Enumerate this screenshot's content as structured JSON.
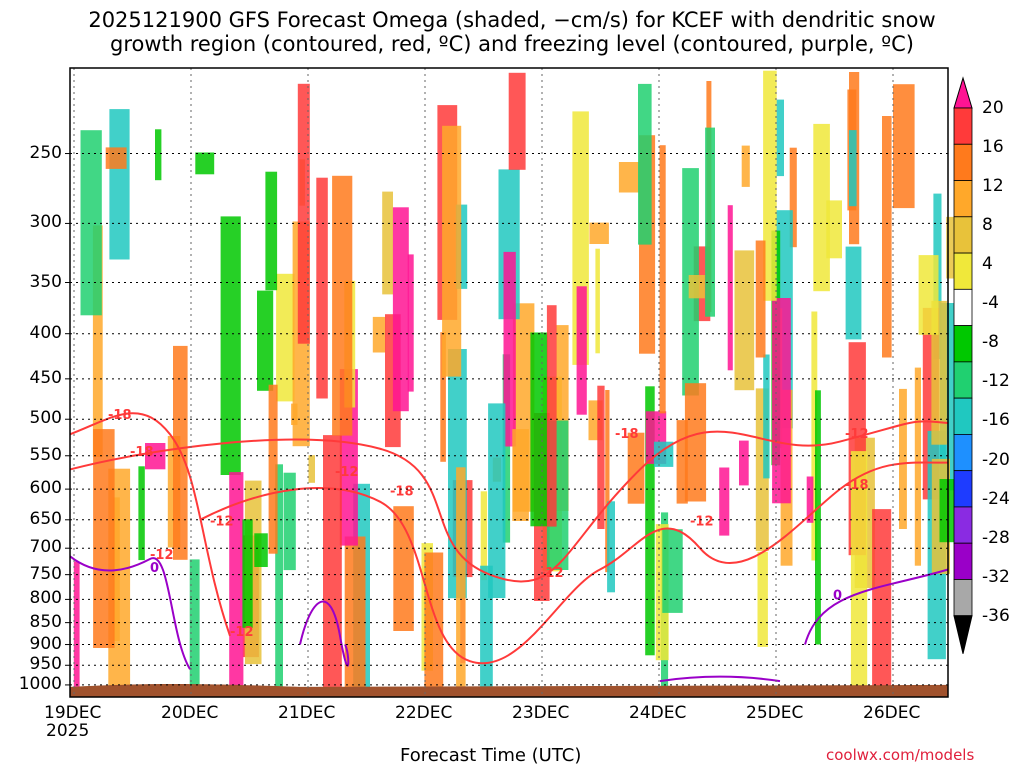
{
  "chart_data": {
    "type": "heatmap",
    "title_line1": "2025121900 GFS Forecast Omega (shaded, −cm/s) for KCEF with dendritic snow",
    "title_line2": "growth region (contoured, red, ºC) and freezing level (contoured, purple, ºC)",
    "xlabel": "Forecast Time (UTC)",
    "x_ticks": [
      "19DEC",
      "20DEC",
      "21DEC",
      "22DEC",
      "23DEC",
      "24DEC",
      "25DEC",
      "26DEC"
    ],
    "x_year_label": "2025",
    "y_ticks": [
      250,
      300,
      350,
      400,
      450,
      500,
      550,
      600,
      650,
      700,
      750,
      800,
      850,
      900,
      950,
      1000
    ],
    "ylim": [
      1000,
      200
    ],
    "colorbar_ticks": [
      20,
      16,
      12,
      8,
      4,
      -4,
      -8,
      -12,
      -16,
      -20,
      -24,
      -28,
      -32,
      -36
    ],
    "colorbar_colors": [
      "#ff1493",
      "#ff3a3a",
      "#ff7a1c",
      "#ffa82a",
      "#e8c23a",
      "#f0e83a",
      "#ffffff",
      "#00c800",
      "#20d070",
      "#20c8c0",
      "#1e90ff",
      "#1e3cff",
      "#8a2be2",
      "#9a00c8",
      "#a8a8a8",
      "#000000"
    ],
    "dgz_contour_labels": [
      "-18",
      "-18",
      "-12",
      "-18",
      "-12",
      "-18",
      "-12",
      "-12",
      "-12",
      "-18",
      "-12",
      "-12"
    ],
    "freezing_contour_labels": [
      "0",
      "0"
    ],
    "terrain_color": "#a0522d",
    "dgz_color": "#ff3a3a",
    "freezing_color": "#9a00c8"
  },
  "credit": "coolwx.com/models"
}
